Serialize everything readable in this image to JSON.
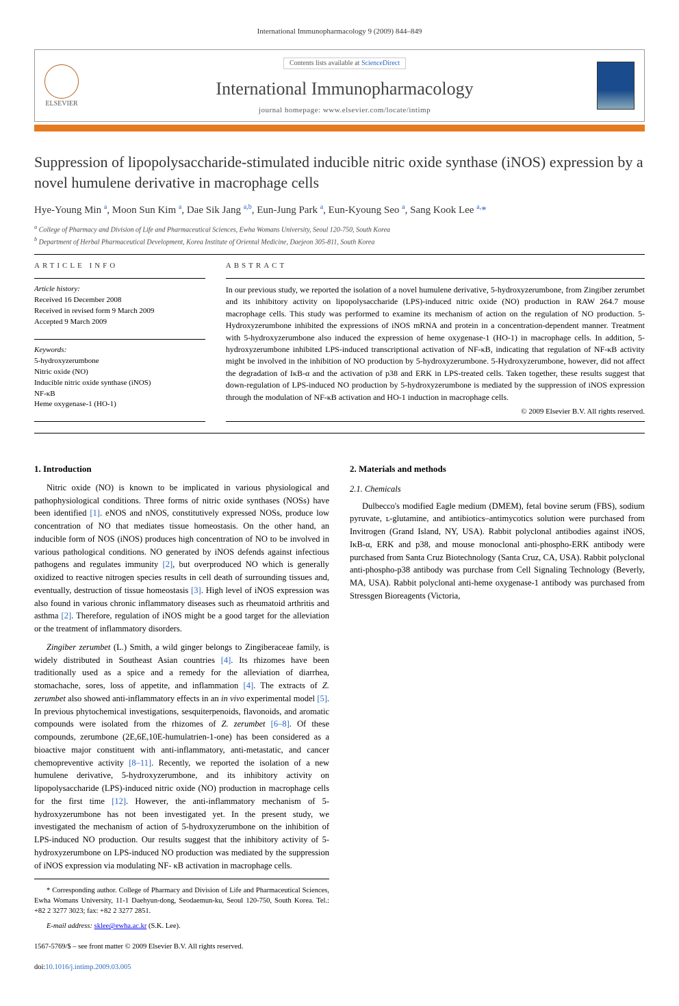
{
  "running_header": "International Immunopharmacology 9 (2009) 844–849",
  "header": {
    "elsevier_label": "ELSEVIER",
    "contents_prefix": "Contents lists available at ",
    "contents_link": "ScienceDirect",
    "journal_title": "International Immunopharmacology",
    "homepage_label": "journal homepage: ",
    "homepage_url": "www.elsevier.com/locate/intimp"
  },
  "title": "Suppression of lipopolysaccharide-stimulated inducible nitric oxide synthase (iNOS) expression by a novel humulene derivative in macrophage cells",
  "authors_html": "Hye-Young Min <sup>a</sup>, Moon Sun Kim <sup>a</sup>, Dae Sik Jang <sup>a,b</sup>, Eun-Jung Park <sup>a</sup>, Eun-Kyoung Seo <sup>a</sup>, Sang Kook Lee <sup>a,</sup><span class='star'>*</span>",
  "affiliations": {
    "a": "College of Pharmacy and Division of Life and Pharmaceutical Sciences, Ewha Womans University, Seoul 120-750, South Korea",
    "b": "Department of Herbal Pharmaceutical Development, Korea Institute of Oriental Medicine, Daejeon 305-811, South Korea"
  },
  "article_info": {
    "label": "ARTICLE INFO",
    "history_h": "Article history:",
    "history": [
      "Received 16 December 2008",
      "Received in revised form 9 March 2009",
      "Accepted 9 March 2009"
    ],
    "keywords_h": "Keywords:",
    "keywords": [
      "5-hydroxyzerumbone",
      "Nitric oxide (NO)",
      "Inducible nitric oxide synthase (iNOS)",
      "NF-κB",
      "Heme oxygenase-1 (HO-1)"
    ]
  },
  "abstract": {
    "label": "ABSTRACT",
    "text": "In our previous study, we reported the isolation of a novel humulene derivative, 5-hydroxyzerumbone, from Zingiber zerumbet and its inhibitory activity on lipopolysaccharide (LPS)-induced nitric oxide (NO) production in RAW 264.7 mouse macrophage cells. This study was performed to examine its mechanism of action on the regulation of NO production. 5-Hydroxyzerumbone inhibited the expressions of iNOS mRNA and protein in a concentration-dependent manner. Treatment with 5-hydroxyzerumbone also induced the expression of heme oxygenase-1 (HO-1) in macrophage cells. In addition, 5-hydroxyzerumbone inhibited LPS-induced transcriptional activation of NF-κB, indicating that regulation of NF-κB activity might be involved in the inhibition of NO production by 5-hydroxyzerumbone. 5-Hydroxyzerumbone, however, did not affect the degradation of IκB-α and the activation of p38 and ERK in LPS-treated cells. Taken together, these results suggest that down-regulation of LPS-induced NO production by 5-hydroxyzerumbone is mediated by the suppression of iNOS expression through the modulation of NF-κB activation and HO-1 induction in macrophage cells.",
    "copyright": "© 2009 Elsevier B.V. All rights reserved."
  },
  "sections": {
    "intro_h": "1. Introduction",
    "intro_p1": "Nitric oxide (NO) is known to be implicated in various physiological and pathophysiological conditions. Three forms of nitric oxide synthases (NOSs) have been identified [1]. eNOS and nNOS, constitutively expressed NOSs, produce low concentration of NO that mediates tissue homeostasis. On the other hand, an inducible form of NOS (iNOS) produces high concentration of NO to be involved in various pathological conditions. NO generated by iNOS defends against infectious pathogens and regulates immunity [2], but overproduced NO which is generally oxidized to reactive nitrogen species results in cell death of surrounding tissues and, eventually, destruction of tissue homeostasis [3]. High level of iNOS expression was also found in various chronic inflammatory diseases such as rheumatoid arthritis and asthma [2]. Therefore, regulation of iNOS might be a good target for the alleviation or the treatment of inflammatory disorders.",
    "intro_p2": "Zingiber zerumbet (L.) Smith, a wild ginger belongs to Zingiberaceae family, is widely distributed in Southeast Asian countries [4]. Its rhizomes have been traditionally used as a spice and a remedy for the alleviation of diarrhea, stomachache, sores, loss of appetite, and inflammation [4]. The extracts of Z. zerumbet also showed anti-inflammatory effects in an in vivo experimental model [5]. In previous phytochemical investigations, sesquiterpenoids, flavonoids, and aromatic compounds were isolated from the rhizomes of Z. zerumbet [6–8]. Of these compounds, zerumbone (2E,6E,10E-humulatrien-1-one) has been considered as a bioactive major constituent with anti-inflammatory, anti-metastatic, and cancer chemopreventive activity [8–11]. Recently, we reported the isolation of a new humulene derivative, 5-hydroxyzerumbone, and its inhibitory activity on lipopolysaccharide (LPS)-induced nitric oxide (NO) production in macrophage cells for the first time [12]. However, the anti-inflammatory mechanism of 5-hydroxyzerumbone has not been investigated yet. In the present study, we investigated the mechanism of action of 5-hydroxyzerumbone on the inhibition of LPS-induced NO production. Our results suggest that the inhibitory activity of 5-hydroxyzerumbone on LPS-induced NO production was mediated by the suppression of iNOS expression via modulating NF- κB activation in macrophage cells.",
    "methods_h": "2. Materials and methods",
    "chem_h": "2.1. Chemicals",
    "chem_p": "Dulbecco's modified Eagle medium (DMEM), fetal bovine serum (FBS), sodium pyruvate, ʟ-glutamine, and antibiotics–antimycotics solution were purchased from Invitrogen (Grand Island, NY, USA). Rabbit polyclonal antibodies against iNOS, IκB-α, ERK and p38, and mouse monoclonal anti-phospho-ERK antibody were purchased from Santa Cruz Biotechnology (Santa Cruz, CA, USA). Rabbit polyclonal anti-phospho-p38 antibody was purchase from Cell Signaling Technology (Beverly, MA, USA). Rabbit polyclonal anti-heme oxygenase-1 antibody was purchased from Stressgen Bioreagents (Victoria,"
  },
  "footnote": {
    "corr": "* Corresponding author. College of Pharmacy and Division of Life and Pharmaceutical Sciences, Ewha Womans University, 11-1 Daehyun-dong, Seodaemun-ku, Seoul 120-750, South Korea. Tel.: +82 2 3277 3023; fax: +82 2 3277 2851.",
    "email_label": "E-mail address: ",
    "email": "sklee@ewha.ac.kr",
    "email_who": " (S.K. Lee)."
  },
  "footer": {
    "issn_line": "1567-5769/$ – see front matter © 2009 Elsevier B.V. All rights reserved.",
    "doi_label": "doi:",
    "doi": "10.1016/j.intimp.2009.03.005"
  },
  "colors": {
    "orange_bar": "#e67a1f",
    "link": "#2765c2"
  }
}
